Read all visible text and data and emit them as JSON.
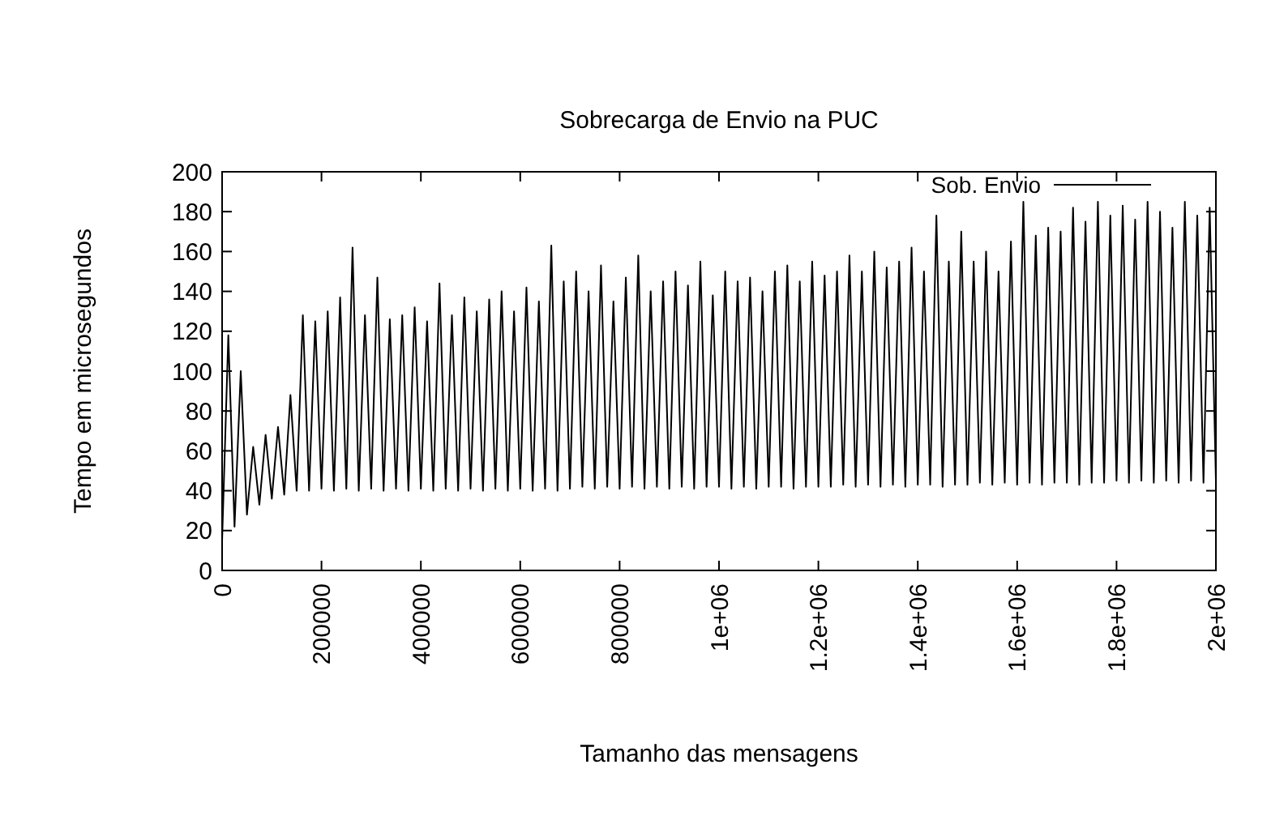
{
  "chart_data": {
    "type": "line",
    "title": "Sobrecarga de Envio na PUC",
    "xlabel": "Tamanho das mensagens",
    "ylabel": "Tempo em microsegundos",
    "x": [
      0,
      12500,
      25000,
      37500,
      50000,
      62500,
      75000,
      87500,
      100000,
      112500,
      125000,
      137500,
      150000,
      162500,
      175000,
      187500,
      200000,
      212500,
      225000,
      237500,
      250000,
      262500,
      275000,
      287500,
      300000,
      312500,
      325000,
      337500,
      350000,
      362500,
      375000,
      387500,
      400000,
      412500,
      425000,
      437500,
      450000,
      462500,
      475000,
      487500,
      500000,
      512500,
      525000,
      537500,
      550000,
      562500,
      575000,
      587500,
      600000,
      612500,
      625000,
      637500,
      650000,
      662500,
      675000,
      687500,
      700000,
      712500,
      725000,
      737500,
      750000,
      762500,
      775000,
      787500,
      800000,
      812500,
      825000,
      837500,
      850000,
      862500,
      875000,
      887500,
      900000,
      912500,
      925000,
      937500,
      950000,
      962500,
      975000,
      987500,
      1000000,
      1012500,
      1025000,
      1037500,
      1050000,
      1062500,
      1075000,
      1087500,
      1100000,
      1112500,
      1125000,
      1137500,
      1150000,
      1162500,
      1175000,
      1187500,
      1200000,
      1212500,
      1225000,
      1237500,
      1250000,
      1262500,
      1275000,
      1287500,
      1300000,
      1312500,
      1325000,
      1337500,
      1350000,
      1362500,
      1375000,
      1387500,
      1400000,
      1412500,
      1425000,
      1437500,
      1450000,
      1462500,
      1475000,
      1487500,
      1500000,
      1512500,
      1525000,
      1537500,
      1550000,
      1562500,
      1575000,
      1587500,
      1600000,
      1612500,
      1625000,
      1637500,
      1650000,
      1662500,
      1675000,
      1687500,
      1700000,
      1712500,
      1725000,
      1737500,
      1750000,
      1762500,
      1775000,
      1787500,
      1800000,
      1812500,
      1825000,
      1837500,
      1850000,
      1862500,
      1875000,
      1887500,
      1900000,
      1912500,
      1925000,
      1937500,
      1950000,
      1962500,
      1975000,
      1987500,
      2000000
    ],
    "series": [
      {
        "name": "Sob. Envio",
        "color": "#000000",
        "values": [
          15,
          118,
          22,
          100,
          28,
          62,
          33,
          68,
          36,
          72,
          38,
          88,
          40,
          128,
          40,
          125,
          41,
          130,
          40,
          137,
          41,
          162,
          40,
          128,
          41,
          147,
          40,
          126,
          41,
          128,
          40,
          132,
          41,
          125,
          40,
          144,
          41,
          128,
          40,
          137,
          41,
          130,
          40,
          136,
          41,
          140,
          40,
          130,
          41,
          142,
          40,
          135,
          41,
          163,
          40,
          145,
          41,
          150,
          42,
          140,
          41,
          153,
          42,
          135,
          41,
          147,
          42,
          158,
          41,
          140,
          42,
          145,
          41,
          150,
          42,
          143,
          41,
          155,
          42,
          138,
          42,
          150,
          41,
          145,
          42,
          147,
          41,
          140,
          42,
          150,
          42,
          153,
          41,
          145,
          42,
          155,
          42,
          148,
          42,
          150,
          43,
          158,
          42,
          150,
          43,
          160,
          42,
          152,
          43,
          155,
          42,
          162,
          43,
          150,
          43,
          178,
          42,
          155,
          43,
          170,
          43,
          155,
          44,
          160,
          43,
          150,
          44,
          165,
          43,
          185,
          44,
          168,
          43,
          172,
          44,
          170,
          44,
          182,
          43,
          175,
          44,
          185,
          44,
          178,
          45,
          183,
          44,
          176,
          45,
          185,
          44,
          180,
          45,
          172,
          44,
          185,
          45,
          178,
          44,
          182,
          45
        ]
      }
    ],
    "xlim": [
      0,
      2000000
    ],
    "ylim": [
      0,
      200
    ],
    "xticks": [
      0,
      200000,
      400000,
      600000,
      800000,
      {
        "value": 1000000,
        "label": "1e+06"
      },
      {
        "value": 1200000,
        "label": "1.2e+06"
      },
      {
        "value": 1400000,
        "label": "1.4e+06"
      },
      {
        "value": 1600000,
        "label": "1.6e+06"
      },
      {
        "value": 1800000,
        "label": "1.8e+06"
      },
      {
        "value": 2000000,
        "label": "2e+06"
      }
    ],
    "yticks": [
      0,
      20,
      40,
      60,
      80,
      100,
      120,
      140,
      160,
      180,
      200
    ],
    "legend": "top right",
    "grid": false,
    "marker": "none",
    "line_style": "solid"
  }
}
